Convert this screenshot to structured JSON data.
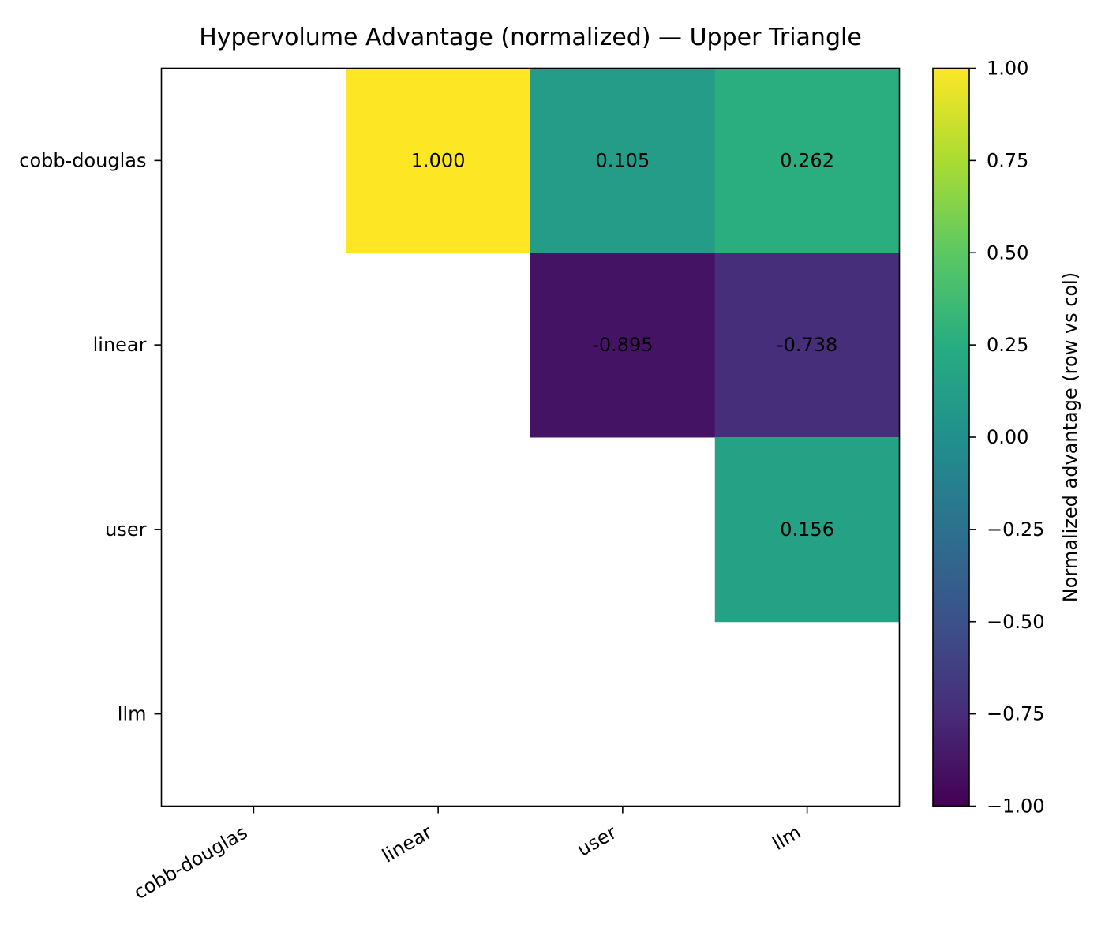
{
  "chart_data": {
    "type": "heatmap",
    "title": "Hypervolume Advantage (normalized) — Upper Triangle",
    "rows": [
      "cobb-douglas",
      "linear",
      "user",
      "llm"
    ],
    "cols": [
      "cobb-douglas",
      "linear",
      "user",
      "llm"
    ],
    "cells": [
      {
        "row": 0,
        "col": 1,
        "value": 1.0,
        "label": "1.000"
      },
      {
        "row": 0,
        "col": 2,
        "value": 0.105,
        "label": "0.105"
      },
      {
        "row": 0,
        "col": 3,
        "value": 0.262,
        "label": "0.262"
      },
      {
        "row": 1,
        "col": 2,
        "value": -0.895,
        "label": "-0.895"
      },
      {
        "row": 1,
        "col": 3,
        "value": -0.738,
        "label": "-0.738"
      },
      {
        "row": 2,
        "col": 3,
        "value": 0.156,
        "label": "0.156"
      }
    ],
    "colorbar": {
      "label": "Normalized advantage (row vs col)",
      "min": -1.0,
      "max": 1.0,
      "ticks": [
        "1.00",
        "0.75",
        "0.50",
        "0.25",
        "0.00",
        "−0.25",
        "−0.50",
        "−0.75",
        "−1.00"
      ],
      "tick_values": [
        1.0,
        0.75,
        0.5,
        0.25,
        0.0,
        -0.25,
        -0.5,
        -0.75,
        -1.0
      ],
      "colormap": "viridis"
    },
    "grid": false
  }
}
